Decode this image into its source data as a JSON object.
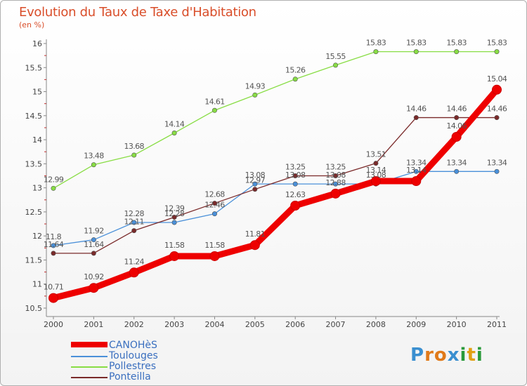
{
  "title": "Evolution du Taux de Taxe d'Habitation",
  "unit_label": "(en %)",
  "logo_text": "Proxiti",
  "chart_data": {
    "type": "line",
    "categories": [
      "2000",
      "2001",
      "2002",
      "2003",
      "2004",
      "2005",
      "2006",
      "2007",
      "2008",
      "2009",
      "2010",
      "2011"
    ],
    "ylim": [
      10.5,
      16
    ],
    "yticks": [
      "10.5",
      "11",
      "11.5",
      "12",
      "12.5",
      "13",
      "13.5",
      "14",
      "14.5",
      "15",
      "15.5",
      "16"
    ],
    "grid": false,
    "legend_position": "bottom-left",
    "series": [
      {
        "name": "CANOHèS",
        "color": "#ee0000",
        "values": [
          10.71,
          10.92,
          11.24,
          11.58,
          11.58,
          11.81,
          12.63,
          12.88,
          13.14,
          13.14,
          14.06,
          15.04
        ],
        "labels": [
          "10.71",
          "10.92",
          "11.24",
          "11.58",
          "11.58",
          "11.81",
          "12.63",
          "12.88",
          "13.14",
          "13.14",
          "14.06",
          "15.04"
        ]
      },
      {
        "name": "Toulouges",
        "color": "#4a90d9",
        "values": [
          11.8,
          11.92,
          12.28,
          12.28,
          12.46,
          13.08,
          13.08,
          13.08,
          13.08,
          13.34,
          13.34,
          13.34
        ],
        "labels": [
          "11.8",
          "11.92",
          "12.28",
          "12.28",
          "12.46",
          "13.08",
          "13.08",
          "13.08",
          "13.08",
          "13.34",
          "13.34",
          "13.34"
        ]
      },
      {
        "name": "Pollestres",
        "color": "#88dd44",
        "values": [
          12.99,
          13.48,
          13.68,
          14.14,
          14.61,
          14.93,
          15.26,
          15.55,
          15.83,
          15.83,
          15.83,
          15.83
        ],
        "labels": [
          "12.99",
          "13.48",
          "13.68",
          "14.14",
          "14.61",
          "14.93",
          "15.26",
          "15.55",
          "15.83",
          "15.83",
          "15.83",
          "15.83"
        ]
      },
      {
        "name": "Ponteilla",
        "color": "#7a2a2a",
        "values": [
          11.64,
          11.64,
          12.11,
          12.39,
          12.68,
          12.97,
          13.25,
          13.25,
          13.51,
          14.46,
          14.46,
          14.46
        ],
        "labels": [
          "11.64",
          "11.64",
          "12.11",
          "12.39",
          "12.68",
          "12.97",
          "13.25",
          "13.25",
          "13.51",
          "14.46",
          "14.46",
          "14.46"
        ]
      }
    ]
  }
}
